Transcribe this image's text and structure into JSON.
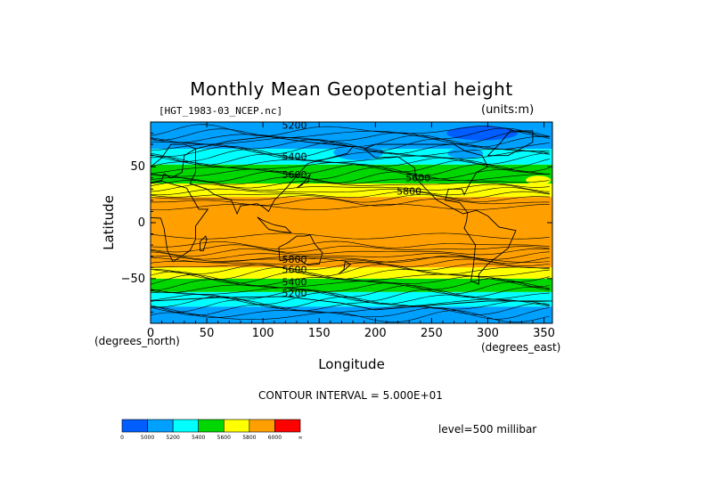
{
  "chart_data": {
    "type": "heatmap",
    "title": "Monthly Mean Geopotential height",
    "file_label": "[HGT_1983-03_NCEP.nc]",
    "units_label": "(units:m)",
    "xlabel": "Longitude",
    "ylabel": "Latitude",
    "x_units": "(degrees_east)",
    "y_units": "(degrees_north)",
    "xlim": [
      0,
      357.5
    ],
    "ylim": [
      -90,
      90
    ],
    "x_ticks": [
      0,
      50,
      100,
      150,
      200,
      250,
      300,
      350
    ],
    "y_ticks": [
      -50,
      0,
      50
    ],
    "contour_interval": "CONTOUR INTERVAL = 5.000E+01",
    "level": "level=500 millibar",
    "contour_labels": [
      {
        "text": "5200",
        "lon": 128,
        "lat": 84
      },
      {
        "text": "5400",
        "lon": 128,
        "lat": 56
      },
      {
        "text": "5600",
        "lon": 128,
        "lat": 40
      },
      {
        "text": "5600",
        "lon": 238,
        "lat": 37
      },
      {
        "text": "5800",
        "lon": 230,
        "lat": 25
      },
      {
        "text": "5800",
        "lon": 128,
        "lat": -36
      },
      {
        "text": "5600",
        "lon": 128,
        "lat": -45
      },
      {
        "text": "5400",
        "lon": 128,
        "lat": -56
      },
      {
        "text": "5200",
        "lon": 128,
        "lat": -66
      }
    ],
    "colorbar": {
      "colors": [
        "#005dff",
        "#00a0ff",
        "#00ffff",
        "#00d700",
        "#ffff00",
        "#ffa000",
        "#ff0000"
      ],
      "tick_labels": [
        "0",
        "5000",
        "5200",
        "5400",
        "5600",
        "5800",
        "6000",
        "∞"
      ]
    },
    "field_bands": [
      {
        "lat_from": -90,
        "lat_to": -75,
        "value": 5100
      },
      {
        "lat_from": -75,
        "lat_to": -62,
        "value": 5300
      },
      {
        "lat_from": -62,
        "lat_to": -50,
        "value": 5500
      },
      {
        "lat_from": -50,
        "lat_to": -40,
        "value": 5700
      },
      {
        "lat_from": -40,
        "lat_to": 23,
        "value": 5850
      },
      {
        "lat_from": 23,
        "lat_to": 35,
        "value": 5700
      },
      {
        "lat_from": 35,
        "lat_to": 52,
        "value": 5500
      },
      {
        "lat_from": 52,
        "lat_to": 66,
        "value": 5300
      },
      {
        "lat_from": 66,
        "lat_to": 90,
        "value": 5100
      }
    ]
  }
}
